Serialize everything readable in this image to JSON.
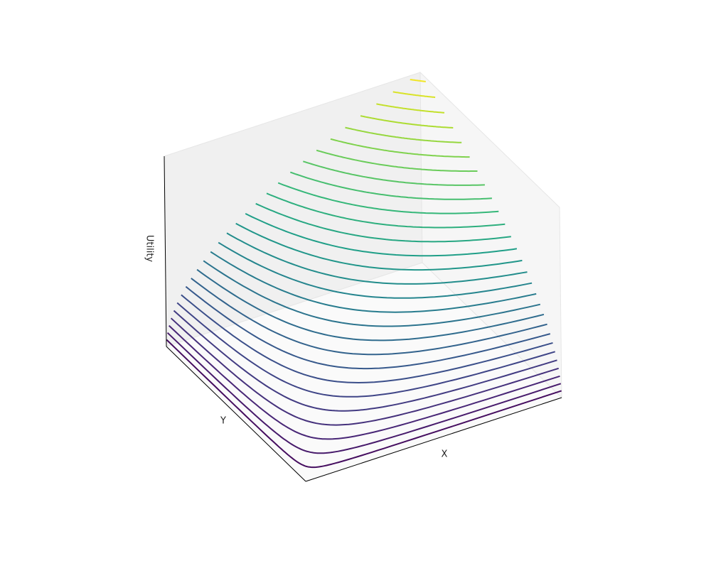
{
  "chart_data": {
    "type": "contour3d",
    "xlabel": "X",
    "ylabel": "Y",
    "zlabel": "Utility",
    "colormap": "viridis",
    "xlim": [
      0,
      1
    ],
    "ylim": [
      0,
      1
    ],
    "zlim": [
      0,
      1
    ],
    "levels": [
      0.035,
      0.07,
      0.105,
      0.14,
      0.175,
      0.21,
      0.245,
      0.28,
      0.315,
      0.35,
      0.385,
      0.42,
      0.455,
      0.49,
      0.525,
      0.56,
      0.595,
      0.63,
      0.665,
      0.7,
      0.735,
      0.77,
      0.805,
      0.84,
      0.875,
      0.91,
      0.945,
      0.98
    ]
  }
}
